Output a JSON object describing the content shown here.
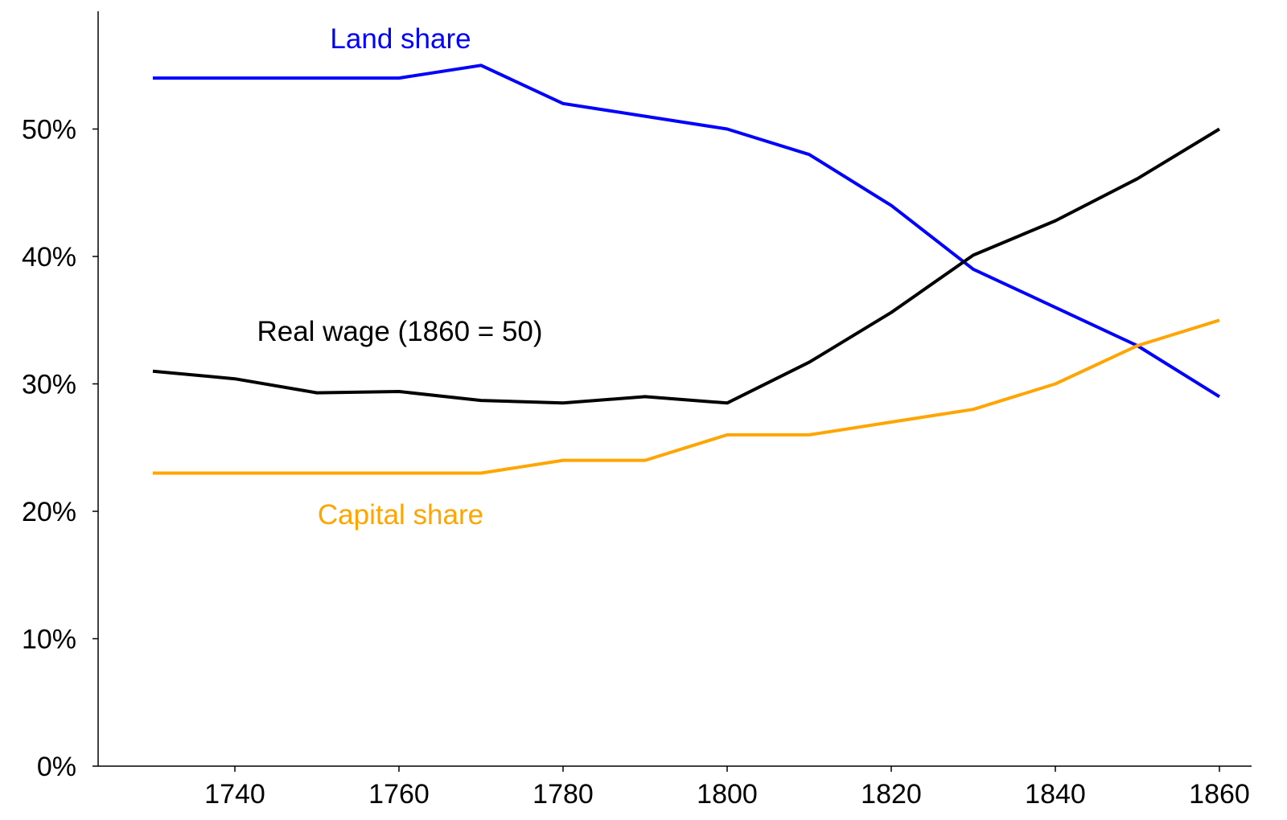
{
  "chart_data": {
    "type": "line",
    "title": "",
    "xlabel": "",
    "ylabel": "",
    "x": [
      1730,
      1740,
      1750,
      1760,
      1770,
      1780,
      1790,
      1800,
      1810,
      1820,
      1830,
      1840,
      1850,
      1860
    ],
    "xlim": [
      1724,
      1866
    ],
    "ylim": [
      0,
      60
    ],
    "x_ticks": [
      1740,
      1760,
      1780,
      1800,
      1820,
      1840,
      1860
    ],
    "x_tick_labels": [
      "1740",
      "1760",
      "1780",
      "1800",
      "1820",
      "1840",
      "1860"
    ],
    "y_ticks": [
      0,
      10,
      20,
      30,
      40,
      50
    ],
    "y_tick_labels": [
      "0%",
      "10%",
      "20%",
      "30%",
      "40%",
      "50%"
    ],
    "grid": false,
    "legend": "none",
    "series": [
      {
        "name": "Land share",
        "color": "#0000ff",
        "values": [
          54,
          54,
          54,
          54,
          55,
          52,
          51,
          50,
          48,
          44,
          39,
          36,
          33,
          29
        ]
      },
      {
        "name": "Real wage (1860 = 50)",
        "color": "#000000",
        "values": [
          31,
          30.4,
          29.3,
          29.4,
          28.7,
          28.5,
          29,
          28.5,
          31.7,
          35.6,
          40.1,
          42.8,
          46.1,
          50
        ]
      },
      {
        "name": "Capital share",
        "color": "#ffa500",
        "values": [
          23,
          23,
          23,
          23,
          23,
          24,
          24,
          26,
          26,
          27,
          28,
          30,
          33,
          35
        ]
      }
    ]
  }
}
